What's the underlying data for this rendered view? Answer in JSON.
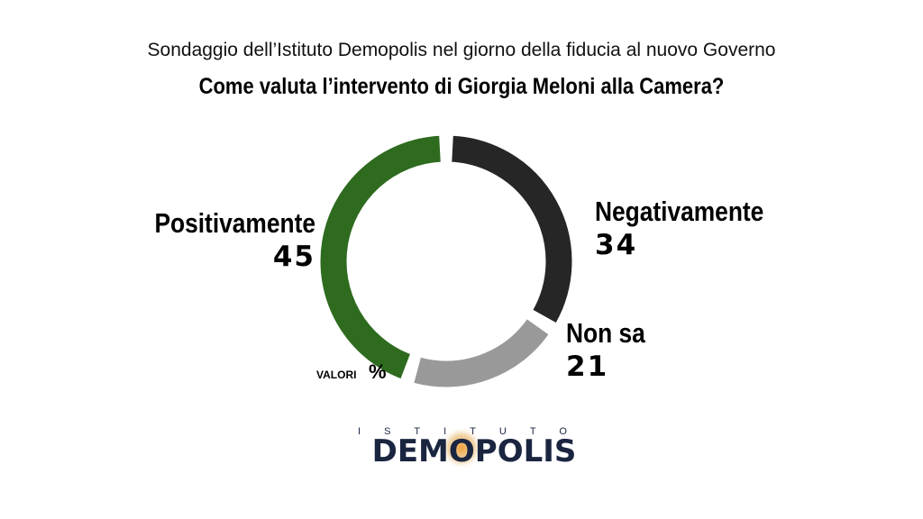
{
  "chart_data": {
    "type": "donut",
    "subtitle": "Sondaggio dell’Istituto Demopolis nel giorno della fiducia al nuovo Governo",
    "title": "Come valuta l’intervento di Giorgia Meloni alla Camera?",
    "categories": [
      "Negativamente",
      "Non sa",
      "Positivamente"
    ],
    "values": [
      34,
      21,
      45
    ],
    "colors": [
      "#262626",
      "#999999",
      "#2e6b1f"
    ],
    "annotation": {
      "prefix": "VALORI",
      "unit": "%"
    }
  },
  "logo": {
    "top": "ISTITUTO",
    "name": "DEMOPOLIS"
  }
}
